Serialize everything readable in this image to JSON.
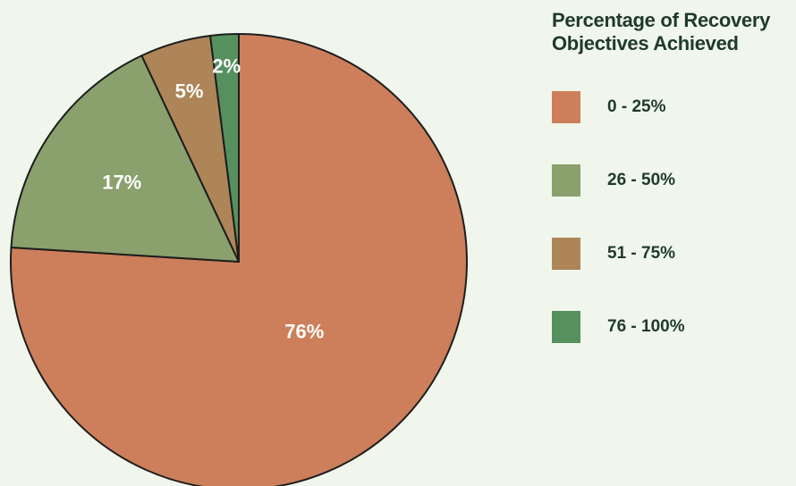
{
  "chart_data": {
    "type": "pie",
    "title": "Percentage of Recovery Objectives Achieved",
    "title_lines": [
      "Percentage of Recovery",
      "Objectives Achieved"
    ],
    "legend_placement": "right",
    "slices": [
      {
        "name": "0 - 25%",
        "value": 76,
        "label": "76%",
        "color": "#cc7f5a"
      },
      {
        "name": "26 - 50%",
        "value": 17,
        "label": "17%",
        "color": "#8aa06d"
      },
      {
        "name": "51 - 75%",
        "value": 5,
        "label": "5%",
        "color": "#ad8558"
      },
      {
        "name": "76 - 100%",
        "value": 2,
        "label": "2%",
        "color": "#57905f"
      }
    ]
  }
}
